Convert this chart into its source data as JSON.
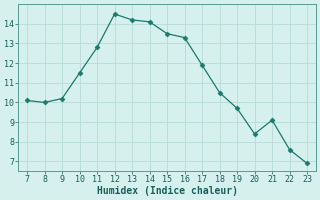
{
  "x": [
    7,
    8,
    9,
    10,
    11,
    12,
    13,
    14,
    15,
    16,
    17,
    18,
    19,
    20,
    21,
    22,
    23
  ],
  "y": [
    10.1,
    10.0,
    10.2,
    11.5,
    12.8,
    14.5,
    14.2,
    14.1,
    13.5,
    13.3,
    11.9,
    10.5,
    9.7,
    8.4,
    9.1,
    7.6,
    6.9
  ],
  "line_color": "#1a7a6e",
  "marker": "D",
  "marker_size": 2.5,
  "bg_color": "#d6f0ee",
  "grid_color": "#b8dbd8",
  "xlabel": "Humidex (Indice chaleur)",
  "xlim": [
    6.5,
    23.5
  ],
  "ylim": [
    6.5,
    15.0
  ],
  "xticks": [
    7,
    8,
    9,
    10,
    11,
    12,
    13,
    14,
    15,
    16,
    17,
    18,
    19,
    20,
    21,
    22,
    23
  ],
  "yticks": [
    7,
    8,
    9,
    10,
    11,
    12,
    13,
    14
  ],
  "label_fontsize": 7,
  "tick_fontsize": 6
}
